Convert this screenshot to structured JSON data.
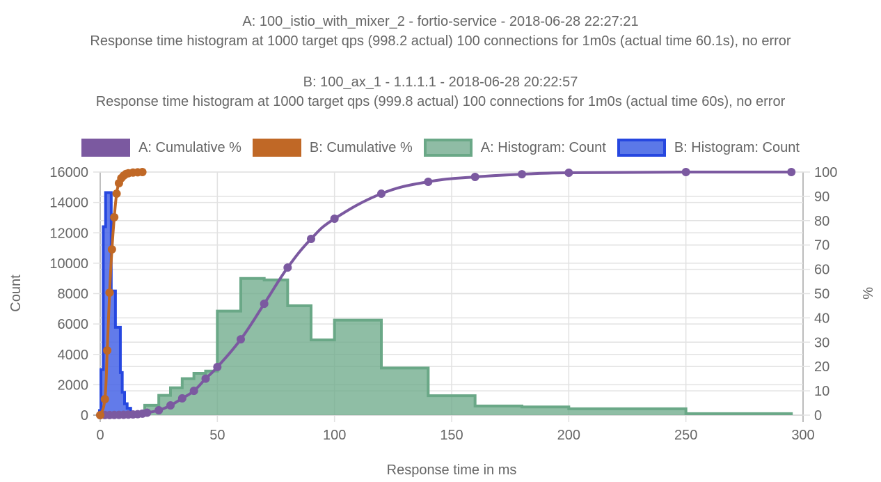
{
  "titles": [
    "A: 100_istio_with_mixer_2 - fortio-service - 2018-06-28 22:27:21",
    "Response time histogram at 1000 target qps (998.2 actual) 100 connections for 1m0s (actual time 60.1s), no error",
    "B: 100_ax_1 - 1.1.1.1 - 2018-06-28 20:22:57",
    "Response time histogram at 1000 target qps (999.8 actual) 100 connections for 1m0s (actual time 60s), no error"
  ],
  "legend": [
    {
      "label": "A: Cumulative %",
      "fill": "#7b59a0",
      "border": "#7b59a0"
    },
    {
      "label": "B: Cumulative %",
      "fill": "#c06826",
      "border": "#c06826"
    },
    {
      "label": "A: Histogram: Count",
      "fill": "#8fbca5",
      "border": "#6aa887"
    },
    {
      "label": "B: Histogram: Count",
      "fill": "#5b78e8",
      "border": "#2647e0"
    }
  ],
  "chart_data": {
    "type": "line",
    "xlabel": "Response time in ms",
    "ylabel_left": "Count",
    "ylabel_right": "%",
    "xlim": [
      0,
      300
    ],
    "ylim_left": [
      0,
      16000
    ],
    "ylim_right": [
      0,
      100
    ],
    "x_ticks": [
      "0",
      "50",
      "100",
      "150",
      "200",
      "250",
      "300"
    ],
    "x_tick_values": [
      0,
      50,
      100,
      150,
      200,
      250,
      300
    ],
    "y_left_ticks": [
      "0",
      "2000",
      "4000",
      "6000",
      "8000",
      "10000",
      "12000",
      "14000",
      "16000"
    ],
    "y_left_tick_values": [
      0,
      2000,
      4000,
      6000,
      8000,
      10000,
      12000,
      14000,
      16000
    ],
    "y_right_ticks": [
      "0",
      "10",
      "20",
      "30",
      "40",
      "50",
      "60",
      "70",
      "80",
      "90",
      "100"
    ],
    "y_right_tick_values": [
      0,
      10,
      20,
      30,
      40,
      50,
      60,
      70,
      80,
      90,
      100
    ],
    "grid": true,
    "legend_position": "top",
    "histograms": [
      {
        "name": "A: Histogram: Count",
        "color": "#6aa887",
        "fill": "rgba(106,168,135,0.75)",
        "bins": [
          [
            19,
            20,
            650
          ],
          [
            20,
            25,
            650
          ],
          [
            25,
            30,
            1300
          ],
          [
            30,
            35,
            1800
          ],
          [
            35,
            40,
            2400
          ],
          [
            40,
            45,
            2750
          ],
          [
            45,
            50,
            2900
          ],
          [
            50,
            60,
            6850
          ],
          [
            60,
            70,
            9000
          ],
          [
            70,
            80,
            8900
          ],
          [
            80,
            90,
            7200
          ],
          [
            90,
            100,
            4950
          ],
          [
            100,
            120,
            6250
          ],
          [
            120,
            140,
            3100
          ],
          [
            140,
            160,
            1280
          ],
          [
            160,
            180,
            600
          ],
          [
            180,
            200,
            540
          ],
          [
            200,
            250,
            420
          ],
          [
            250,
            295,
            100
          ]
        ]
      },
      {
        "name": "B: Histogram: Count",
        "color": "#2647e0",
        "fill": "rgba(70,100,230,0.85)",
        "bins": [
          [
            -0.3,
            0.3,
            300
          ],
          [
            0.3,
            1.3,
            3000
          ],
          [
            1.3,
            2.3,
            12400
          ],
          [
            2.3,
            4.7,
            14650
          ],
          [
            4.7,
            6.5,
            8170
          ],
          [
            6.5,
            8.6,
            5780
          ],
          [
            8.6,
            9.4,
            2800
          ],
          [
            9.4,
            10.4,
            1500
          ],
          [
            10.4,
            11.5,
            750
          ],
          [
            11.5,
            13,
            450
          ],
          [
            13,
            18,
            100
          ]
        ]
      }
    ],
    "series": [
      {
        "name": "A: Cumulative %",
        "color": "#7b59a0",
        "points": [
          [
            0,
            0
          ],
          [
            2,
            0.02
          ],
          [
            4,
            0.04
          ],
          [
            6,
            0.07
          ],
          [
            8,
            0.1
          ],
          [
            10,
            0.15
          ],
          [
            12,
            0.2
          ],
          [
            14,
            0.3
          ],
          [
            16,
            0.4
          ],
          [
            18,
            0.6
          ],
          [
            20,
            1.0
          ],
          [
            25,
            2.0
          ],
          [
            30,
            4.0
          ],
          [
            35,
            6.9
          ],
          [
            40,
            10.0
          ],
          [
            45,
            15.0
          ],
          [
            50,
            19.8
          ],
          [
            60,
            31.2
          ],
          [
            70,
            45.8
          ],
          [
            80,
            60.7
          ],
          [
            90,
            72.5
          ],
          [
            100,
            80.8
          ],
          [
            120,
            91.1
          ],
          [
            140,
            96.0
          ],
          [
            160,
            98.0
          ],
          [
            180,
            99.1
          ],
          [
            200,
            99.7
          ],
          [
            250,
            100
          ],
          [
            295,
            100
          ]
        ]
      },
      {
        "name": "B: Cumulative %",
        "color": "#c06826",
        "points": [
          [
            0,
            0
          ],
          [
            2,
            6.6
          ],
          [
            3,
            26.6
          ],
          [
            4,
            50.4
          ],
          [
            5,
            68.2
          ],
          [
            6,
            81.4
          ],
          [
            7,
            91.1
          ],
          [
            8,
            95.4
          ],
          [
            9,
            97.5
          ],
          [
            10,
            98.5
          ],
          [
            11,
            99.2
          ],
          [
            12,
            99.5
          ],
          [
            14,
            99.8
          ],
          [
            16,
            99.9
          ],
          [
            18,
            100
          ]
        ]
      }
    ]
  }
}
